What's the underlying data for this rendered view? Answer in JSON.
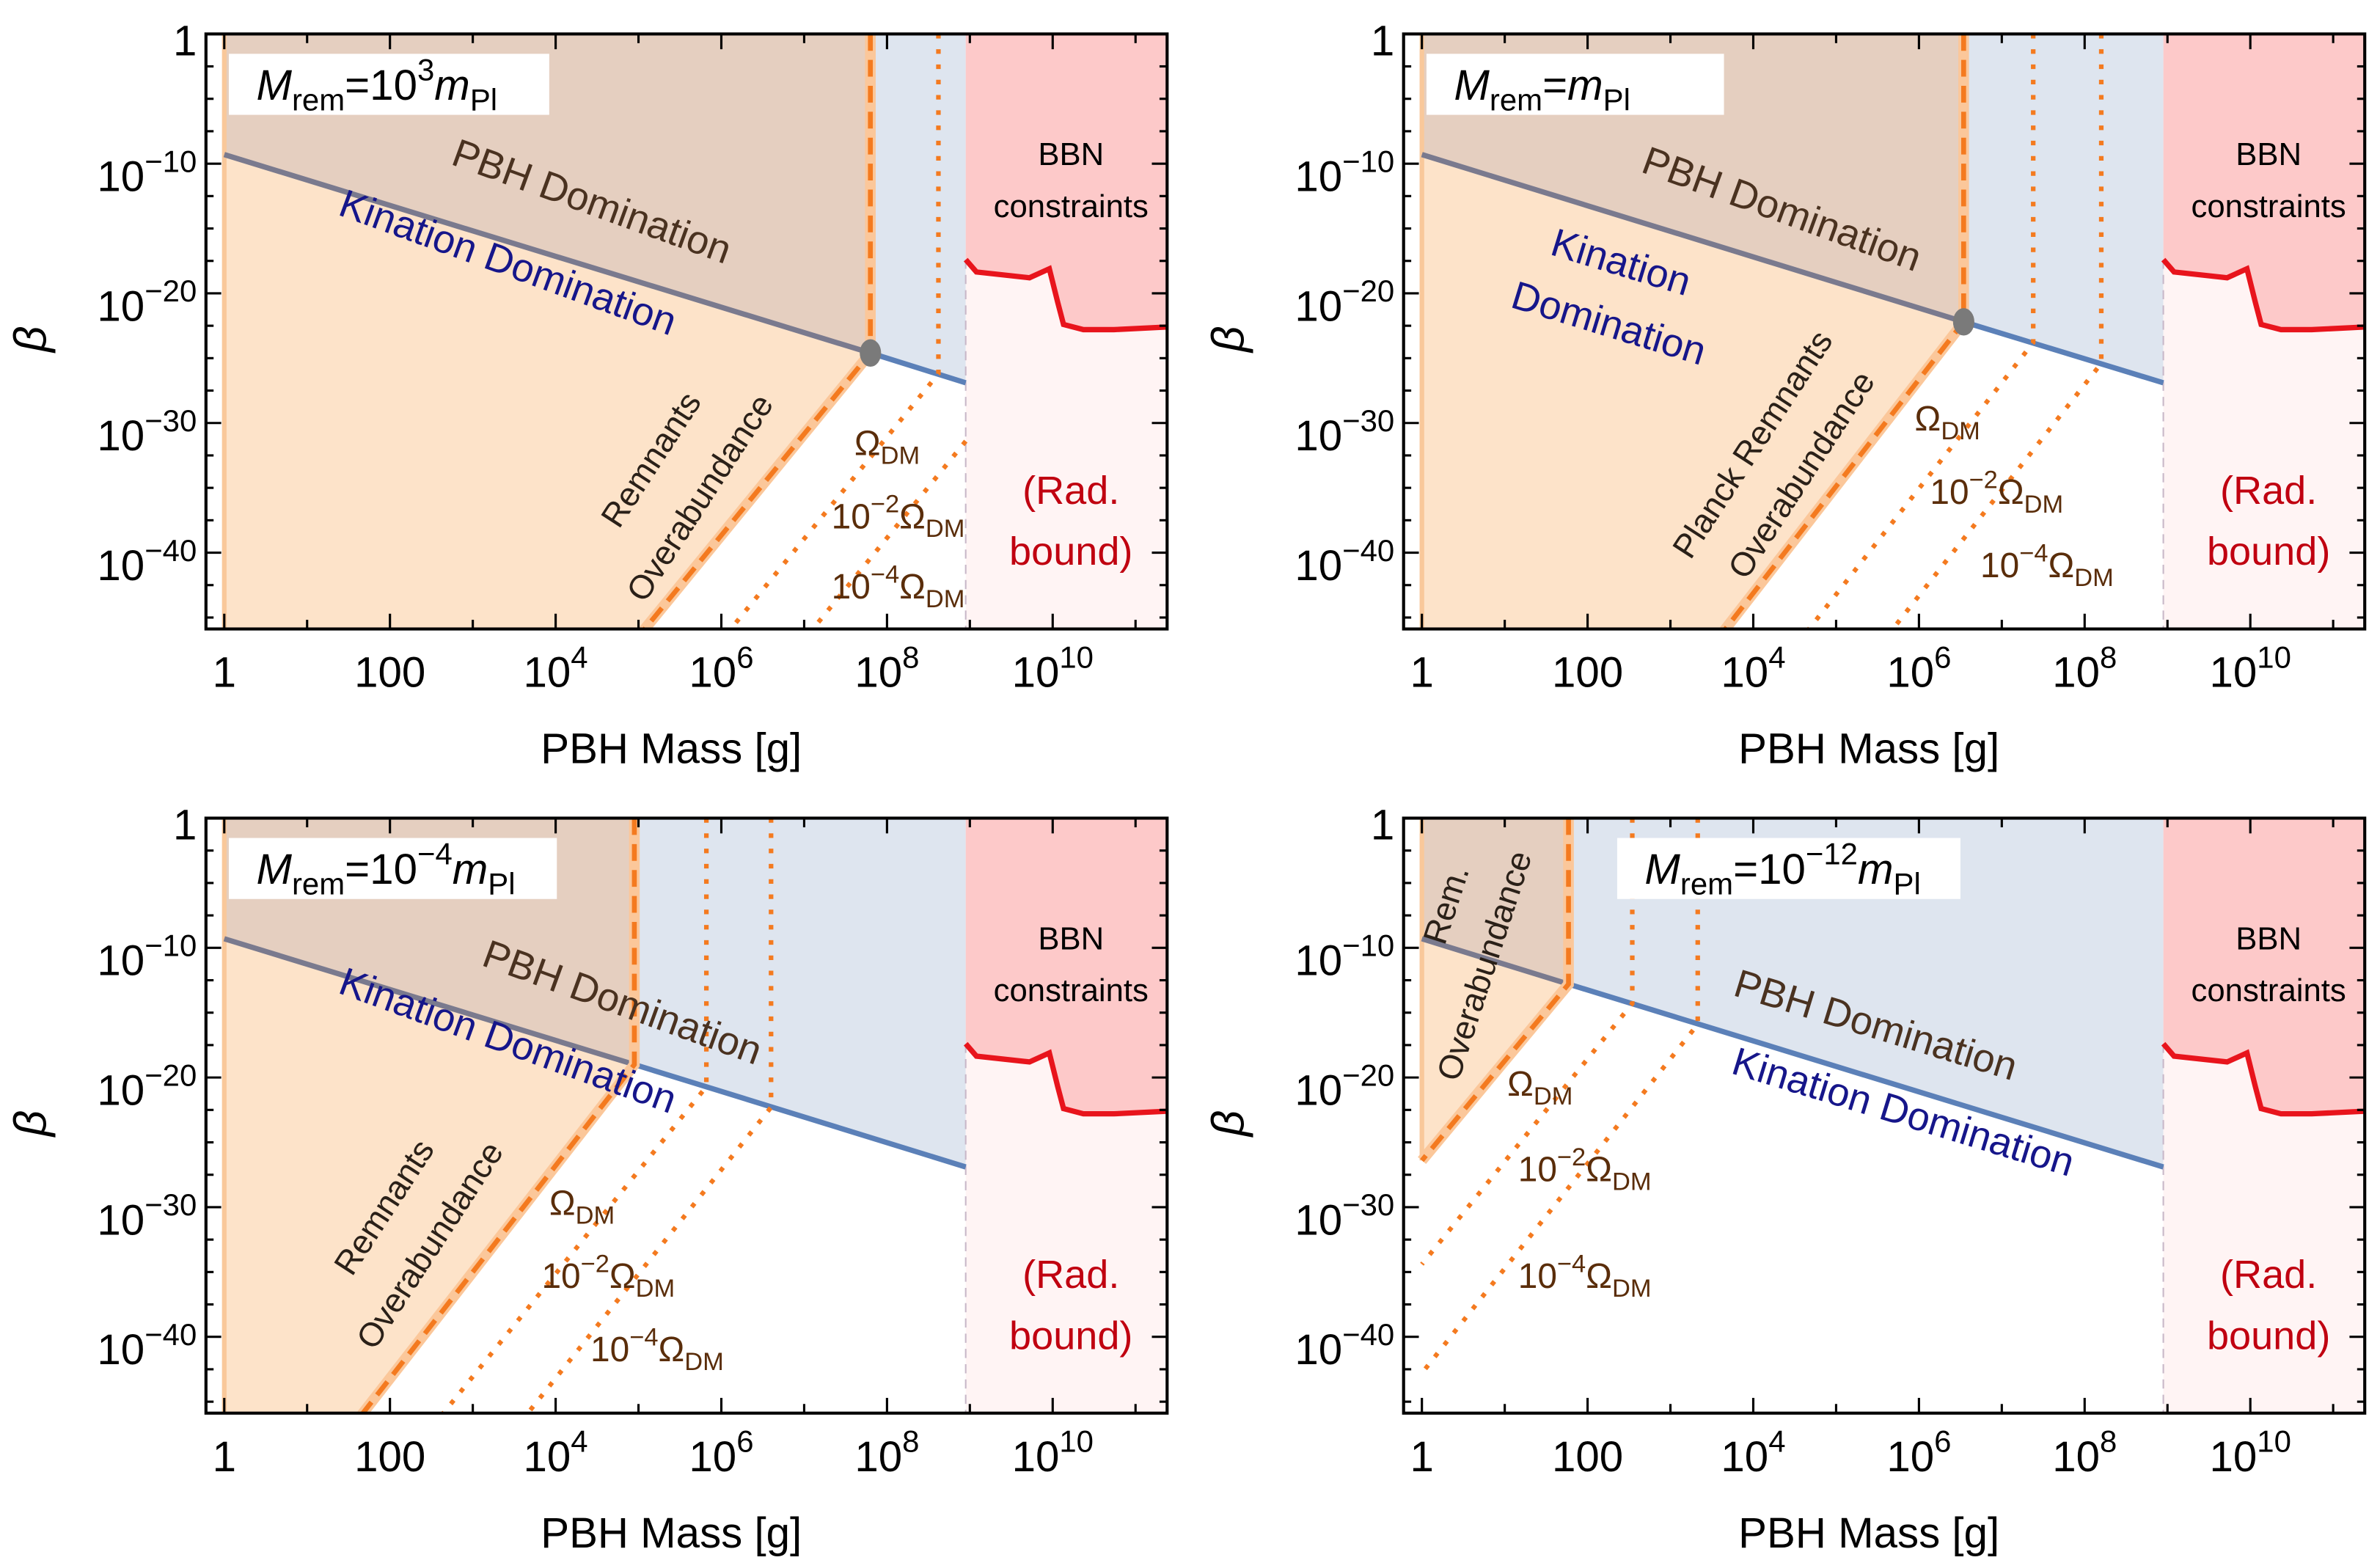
{
  "chart_data": [
    {
      "type": "area",
      "title_segments": [
        {
          "t": "M",
          "s": "it"
        },
        {
          "t": "rem",
          "s": "sub"
        },
        {
          "t": "=10"
        },
        {
          "t": "3",
          "s": "sup"
        },
        {
          "t": "m",
          "s": "it"
        },
        {
          "t": "Pl",
          "s": "sub"
        }
      ],
      "xlabel": "PBH Mass [g]",
      "ylabel": "β",
      "xscale": "log",
      "yscale": "log",
      "xlim_log10": [
        -0.22,
        11.38
      ],
      "ylim_log10": [
        -46,
        0
      ],
      "kination_line": [
        [
          0,
          -9.3
        ],
        [
          8.95,
          -26.9
        ]
      ],
      "overabundance_dashed": [
        [
          7.8,
          0
        ],
        [
          7.8,
          -24.6
        ],
        [
          5.06,
          -46
        ]
      ],
      "dm_dotted": [
        [
          [
            8.62,
            0
          ],
          [
            8.62,
            -26.2
          ],
          [
            6.1,
            -46
          ]
        ],
        [
          [
            8.95,
            -31.4
          ],
          [
            7.09,
            -46
          ]
        ]
      ],
      "marker": [
        7.8,
        -24.6
      ],
      "labels": {
        "pbh": "PBH Domination",
        "kin": "Kination Domination",
        "rem1": "Remnants",
        "rem2": "Overabundance",
        "bbn1": "BBN",
        "bbn2": "constraints",
        "rad1": "(Rad.",
        "rad2": "bound)"
      },
      "dm_labels": [
        [
          {
            "t": "Ω"
          },
          {
            "t": "DM",
            "s": "sub"
          }
        ],
        [
          {
            "t": "10"
          },
          {
            "t": "−2",
            "s": "sup"
          },
          {
            "t": "Ω"
          },
          {
            "t": "DM",
            "s": "sub"
          }
        ],
        [
          {
            "t": "10"
          },
          {
            "t": "−4",
            "s": "sup"
          },
          {
            "t": "Ω"
          },
          {
            "t": "DM",
            "s": "sub"
          }
        ]
      ]
    },
    {
      "type": "area",
      "title_segments": [
        {
          "t": "M",
          "s": "it"
        },
        {
          "t": "rem",
          "s": "sub"
        },
        {
          "t": "="
        },
        {
          "t": "m",
          "s": "it"
        },
        {
          "t": "Pl",
          "s": "sub"
        }
      ],
      "xlabel": "PBH Mass [g]",
      "ylabel": "β",
      "xscale": "log",
      "yscale": "log",
      "xlim_log10": [
        -0.22,
        11.38
      ],
      "ylim_log10": [
        -46,
        0
      ],
      "kination_line": [
        [
          0,
          -9.3
        ],
        [
          8.95,
          -26.9
        ]
      ],
      "overabundance_dashed": [
        [
          6.54,
          0
        ],
        [
          6.54,
          -22.2
        ],
        [
          3.65,
          -46
        ]
      ],
      "dm_dotted": [
        [
          [
            7.38,
            0
          ],
          [
            7.38,
            -23.8
          ],
          [
            4.66,
            -46
          ]
        ],
        [
          [
            8.2,
            0
          ],
          [
            8.2,
            -25.4
          ],
          [
            5.67,
            -46
          ]
        ]
      ],
      "marker": [
        6.54,
        -22.2
      ],
      "labels": {
        "pbh": "PBH Domination",
        "kin": "Kination",
        "kin2": "Domination",
        "rem1": "Planck Remnants",
        "rem2": "Overabundance",
        "bbn1": "BBN",
        "bbn2": "constraints",
        "rad1": "(Rad.",
        "rad2": "bound)"
      },
      "dm_labels": [
        [
          {
            "t": "Ω"
          },
          {
            "t": "DM",
            "s": "sub"
          }
        ],
        [
          {
            "t": "10"
          },
          {
            "t": "−2",
            "s": "sup"
          },
          {
            "t": "Ω"
          },
          {
            "t": "DM",
            "s": "sub"
          }
        ],
        [
          {
            "t": "10"
          },
          {
            "t": "−4",
            "s": "sup"
          },
          {
            "t": "Ω"
          },
          {
            "t": "DM",
            "s": "sub"
          }
        ]
      ]
    },
    {
      "type": "area",
      "title_segments": [
        {
          "t": "M",
          "s": "it"
        },
        {
          "t": "rem",
          "s": "sub"
        },
        {
          "t": "=10"
        },
        {
          "t": "−4",
          "s": "sup"
        },
        {
          "t": "m",
          "s": "it"
        },
        {
          "t": "Pl",
          "s": "sub"
        }
      ],
      "xlabel": "PBH Mass [g]",
      "ylabel": "β",
      "xscale": "log",
      "yscale": "log",
      "xlim_log10": [
        -0.22,
        11.38
      ],
      "ylim_log10": [
        -46,
        0
      ],
      "kination_line": [
        [
          0,
          -9.3
        ],
        [
          8.95,
          -26.9
        ]
      ],
      "overabundance_dashed": [
        [
          4.95,
          0
        ],
        [
          4.95,
          -19.0
        ],
        [
          1.66,
          -46
        ]
      ],
      "dm_dotted": [
        [
          [
            5.82,
            0
          ],
          [
            5.82,
            -20.7
          ],
          [
            2.63,
            -46
          ]
        ],
        [
          [
            6.6,
            0
          ],
          [
            6.6,
            -22.3
          ],
          [
            3.65,
            -46
          ]
        ]
      ],
      "marker": null,
      "labels": {
        "pbh": "PBH Domination",
        "kin": "Kination Domination",
        "rem1": "Remnants",
        "rem2": "Overabundance",
        "bbn1": "BBN",
        "bbn2": "constraints",
        "rad1": "(Rad.",
        "rad2": "bound)"
      },
      "dm_labels": [
        [
          {
            "t": "Ω"
          },
          {
            "t": "DM",
            "s": "sub"
          }
        ],
        [
          {
            "t": "10"
          },
          {
            "t": "−2",
            "s": "sup"
          },
          {
            "t": "Ω"
          },
          {
            "t": "DM",
            "s": "sub"
          }
        ],
        [
          {
            "t": "10"
          },
          {
            "t": "−4",
            "s": "sup"
          },
          {
            "t": "Ω"
          },
          {
            "t": "DM",
            "s": "sub"
          }
        ]
      ]
    },
    {
      "type": "area",
      "title_segments": [
        {
          "t": "M",
          "s": "it"
        },
        {
          "t": "rem",
          "s": "sub"
        },
        {
          "t": "=10"
        },
        {
          "t": "−12",
          "s": "sup"
        },
        {
          "t": "m",
          "s": "it"
        },
        {
          "t": "Pl",
          "s": "sub"
        }
      ],
      "xlabel": "PBH Mass [g]",
      "ylabel": "β",
      "xscale": "log",
      "yscale": "log",
      "xlim_log10": [
        -0.22,
        11.38
      ],
      "ylim_log10": [
        -46,
        0
      ],
      "kination_line": [
        [
          0,
          -9.3
        ],
        [
          8.95,
          -26.9
        ]
      ],
      "overabundance_dashed": [
        [
          1.77,
          0
        ],
        [
          1.77,
          -12.8
        ],
        [
          0,
          -26.4
        ]
      ],
      "dm_dotted": [
        [
          [
            2.54,
            0
          ],
          [
            2.54,
            -14.3
          ],
          [
            0,
            -34.4
          ]
        ],
        [
          [
            3.33,
            0
          ],
          [
            3.33,
            -15.9
          ],
          [
            0,
            -42.8
          ]
        ]
      ],
      "marker": null,
      "labels": {
        "pbh": "PBH Domination",
        "kin": "Kination Domination",
        "rem1": "Rem.",
        "rem2": "Overabundance",
        "bbn1": "BBN",
        "bbn2": "constraints",
        "rad1": "(Rad.",
        "rad2": "bound)"
      },
      "dm_labels": [
        [
          {
            "t": "Ω"
          },
          {
            "t": "DM",
            "s": "sub"
          }
        ],
        [
          {
            "t": "10"
          },
          {
            "t": "−2",
            "s": "sup"
          },
          {
            "t": "Ω"
          },
          {
            "t": "DM",
            "s": "sub"
          }
        ],
        [
          {
            "t": "10"
          },
          {
            "t": "−4",
            "s": "sup"
          },
          {
            "t": "Ω"
          },
          {
            "t": "DM",
            "s": "sub"
          }
        ]
      ]
    }
  ],
  "shared": {
    "bbn_limit_log10_mass": 8.95,
    "bbn_curve": [
      [
        8.95,
        -17.4
      ],
      [
        9.08,
        -18.35
      ],
      [
        9.72,
        -18.8
      ],
      [
        9.96,
        -18.1
      ],
      [
        10.06,
        -20.7
      ],
      [
        10.13,
        -22.4
      ],
      [
        10.37,
        -22.8
      ],
      [
        10.74,
        -22.8
      ],
      [
        11.38,
        -22.6
      ]
    ],
    "x_ticks": [
      {
        "v": 0,
        "label": [
          {
            "t": "1"
          }
        ]
      },
      {
        "v": 2,
        "label": [
          {
            "t": "100"
          }
        ]
      },
      {
        "v": 4,
        "label": [
          {
            "t": "10"
          },
          {
            "t": "4",
            "s": "sup"
          }
        ]
      },
      {
        "v": 6,
        "label": [
          {
            "t": "10"
          },
          {
            "t": "6",
            "s": "sup"
          }
        ]
      },
      {
        "v": 8,
        "label": [
          {
            "t": "10"
          },
          {
            "t": "8",
            "s": "sup"
          }
        ]
      },
      {
        "v": 10,
        "label": [
          {
            "t": "10"
          },
          {
            "t": "10",
            "s": "sup"
          }
        ]
      }
    ],
    "y_ticks": [
      {
        "v": 0,
        "label": [
          {
            "t": "1"
          }
        ]
      },
      {
        "v": -10,
        "label": [
          {
            "t": "10"
          },
          {
            "t": "−10",
            "s": "sup"
          }
        ]
      },
      {
        "v": -20,
        "label": [
          {
            "t": "10"
          },
          {
            "t": "−20",
            "s": "sup"
          }
        ]
      },
      {
        "v": -30,
        "label": [
          {
            "t": "10"
          },
          {
            "t": "−30",
            "s": "sup"
          }
        ]
      },
      {
        "v": -40,
        "label": [
          {
            "t": "10"
          },
          {
            "t": "−40",
            "s": "sup"
          }
        ]
      }
    ],
    "colors": {
      "overabundance": "#fde3c9",
      "pbh_domination": "#e5cfc0",
      "allowed_pbh": "#dee5ef",
      "bbn": "#fdc9c9",
      "rad_bound": "#fff4f4",
      "bbn_line": "#e8141c",
      "dashed": "#f47a1f",
      "kination_line_a": "#7a7a8e",
      "kination_line_b": "#5b80b8",
      "kin_text": "#16168a",
      "pbh_text": "#4a3220",
      "dm_text": "#5a2d0a",
      "rad_text": "#c00010"
    }
  }
}
